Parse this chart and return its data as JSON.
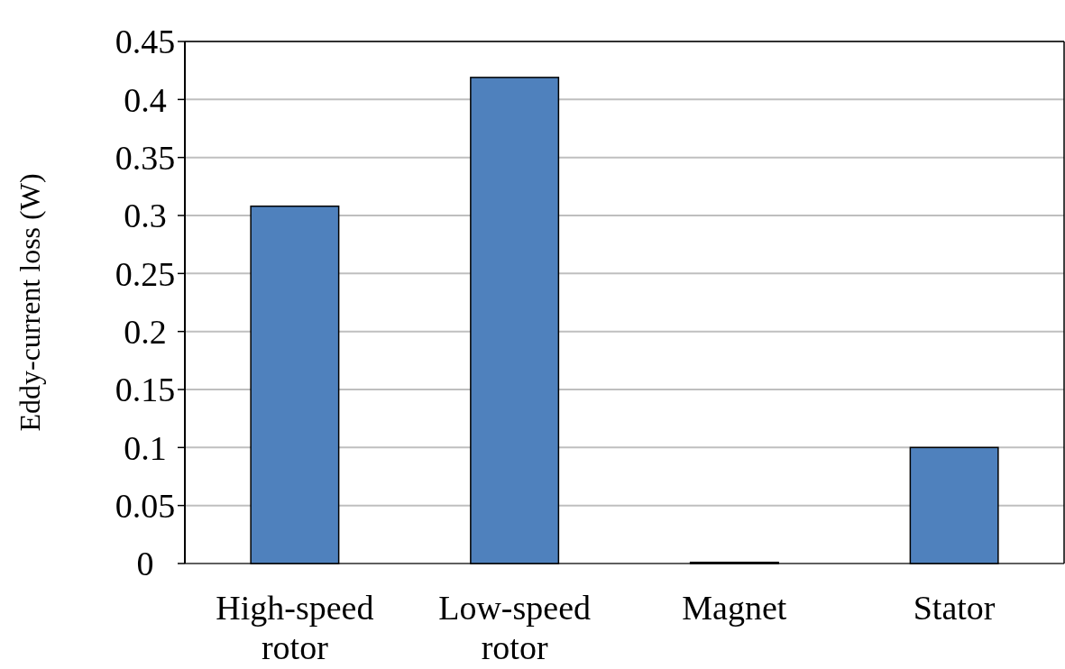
{
  "chart_data": {
    "type": "bar",
    "ylabel": "Eddy-current loss (W)",
    "categories": [
      "High-speed rotor",
      "Low-speed rotor",
      "Magnet",
      "Stator"
    ],
    "values": [
      0.308,
      0.419,
      0.001,
      0.1
    ],
    "color": "#4f81bd",
    "ylim": [
      0,
      0.45
    ],
    "yticks": [
      0,
      0.05,
      0.1,
      0.15,
      0.2,
      0.25,
      0.3,
      0.35,
      0.4,
      0.45
    ],
    "grid": "y"
  }
}
